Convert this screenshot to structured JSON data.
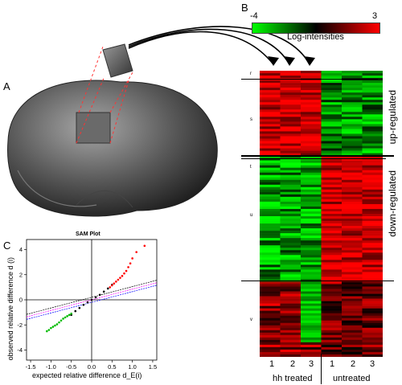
{
  "panels": {
    "a": "A",
    "b": "B",
    "c": "C"
  },
  "colorbar": {
    "min_label": "-4",
    "max_label": "3",
    "title": "Log-intensities",
    "colors": {
      "low": "#00ff00",
      "mid": "#000000",
      "high": "#ff0000"
    }
  },
  "heatmap": {
    "group_labels": [
      "up-regulated",
      "down-regulated"
    ],
    "column_numbers": [
      "1",
      "2",
      "3",
      "1",
      "2",
      "3"
    ],
    "condition_labels": [
      "hh treated",
      "untreated"
    ],
    "cluster_ticks": [
      "r",
      "s",
      "t",
      "u",
      "v"
    ]
  },
  "chart_data": {
    "type": "scatter",
    "title": "SAM Plot",
    "xlabel": "expected relative difference d_E(i)",
    "ylabel": "observed relative difference d (i)",
    "x_ticks": [
      "-1.5",
      "-1.0",
      "-0.5",
      "0.0",
      "0.5",
      "1.0",
      "1.5"
    ],
    "y_ticks": [
      "-4",
      "-2",
      "0",
      "2",
      "4"
    ],
    "xlim": [
      -1.6,
      1.6
    ],
    "ylim": [
      -4.8,
      4.8
    ],
    "series": [
      {
        "color": "#000000",
        "x": [
          -0.5,
          -0.4,
          -0.3,
          -0.2,
          -0.1,
          0,
          0.1,
          0.2,
          0.3,
          0.4,
          0.5
        ],
        "y": [
          -1.2,
          -0.9,
          -0.65,
          -0.4,
          -0.2,
          0,
          0.2,
          0.4,
          0.65,
          0.9,
          1.2
        ]
      },
      {
        "color": "#ff0000",
        "x": [
          0.45,
          0.5,
          0.55,
          0.6,
          0.65,
          0.7,
          0.75,
          0.8,
          0.85,
          0.9,
          0.95,
          1.0,
          1.1,
          1.3
        ],
        "y": [
          1.0,
          1.15,
          1.3,
          1.45,
          1.6,
          1.75,
          1.9,
          2.1,
          2.3,
          2.6,
          2.9,
          3.3,
          3.8,
          4.3
        ]
      },
      {
        "color": "#00bb00",
        "x": [
          -0.5,
          -0.55,
          -0.6,
          -0.65,
          -0.7,
          -0.75,
          -0.8,
          -0.85,
          -0.9,
          -0.95,
          -1.0,
          -1.05,
          -1.1
        ],
        "y": [
          -1.1,
          -1.2,
          -1.3,
          -1.4,
          -1.5,
          -1.65,
          -1.8,
          -1.95,
          -2.05,
          -2.15,
          -2.25,
          -2.4,
          -2.5
        ]
      }
    ],
    "lines": [
      {
        "color": "#000000",
        "slope": 0.85,
        "intercept": 0.2
      },
      {
        "color": "#0000ff",
        "slope": 0.85,
        "intercept": -0.2
      },
      {
        "color": "#ff00ff",
        "slope": 0.85,
        "intercept": 0.0
      }
    ]
  }
}
